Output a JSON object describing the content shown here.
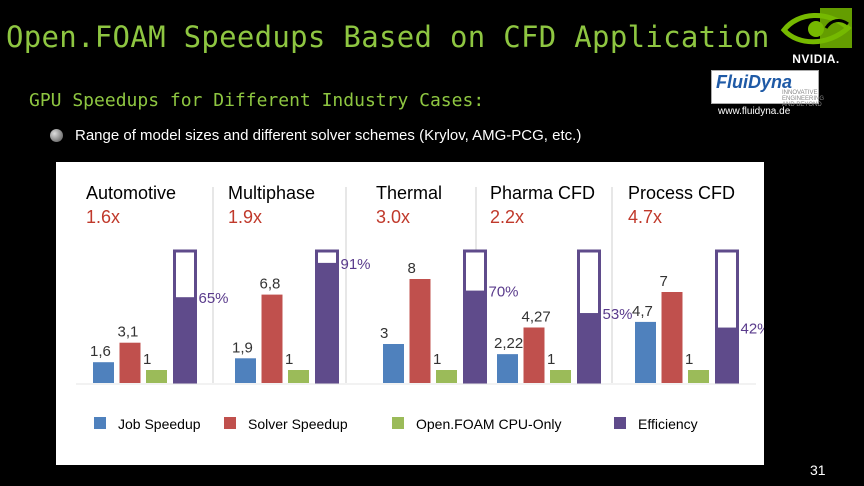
{
  "slide": {
    "title": "Open.FOAM Speedups Based on CFD Application",
    "subtitle": "GPU Speedups for Different Industry Cases:",
    "bullet": "Range of model sizes and different solver schemes (Krylov, AMG-PCG, etc.)",
    "page_number": "31",
    "nvidia_label": "NVIDIA.",
    "fluidyna_name": "FluiDyna",
    "fluidyna_tagline": "INNOVATIVE ENGINEERING AND BEYOND",
    "fluidyna_url": "www.fluidyna.de"
  },
  "colors": {
    "title": "#8ec641",
    "job": "#4f81bd",
    "solver": "#c0504d",
    "cpu": "#9bbb59",
    "efficiency": "#5f4b8b"
  },
  "chart_data": {
    "type": "bar",
    "categories": [
      "Automotive",
      "Multiphase",
      "Thermal",
      "Pharma CFD",
      "Process CFD"
    ],
    "category_speedups": [
      "1.6x",
      "1.9x",
      "3.0x",
      "2.2x",
      "4.7x"
    ],
    "series": [
      {
        "name": "Job Speedup",
        "values": [
          1.6,
          1.9,
          3.0,
          2.22,
          4.7
        ],
        "labels": [
          "1,6",
          "1,9",
          "3",
          "2,22",
          "4,7"
        ]
      },
      {
        "name": "Solver Speedup",
        "values": [
          3.1,
          6.8,
          8.0,
          4.27,
          7.0
        ],
        "labels": [
          "3,1",
          "6,8",
          "8",
          "4,27",
          "7"
        ]
      },
      {
        "name": "Open.FOAM CPU-Only",
        "values": [
          1,
          1,
          1,
          1,
          1
        ],
        "labels": [
          "1",
          "1",
          "1",
          "1",
          "1"
        ]
      },
      {
        "name": "Efficiency",
        "values": [
          65,
          91,
          70,
          53,
          42
        ],
        "labels": [
          "65%",
          "91%",
          "70%",
          "53%",
          "42%"
        ],
        "unit": "percent"
      }
    ],
    "legend": [
      "Job Speedup",
      "Solver Speedup",
      "Open.FOAM CPU-Only",
      "Efficiency"
    ],
    "legend_position": "bottom",
    "ylim": [
      0,
      10
    ],
    "grid": false
  }
}
